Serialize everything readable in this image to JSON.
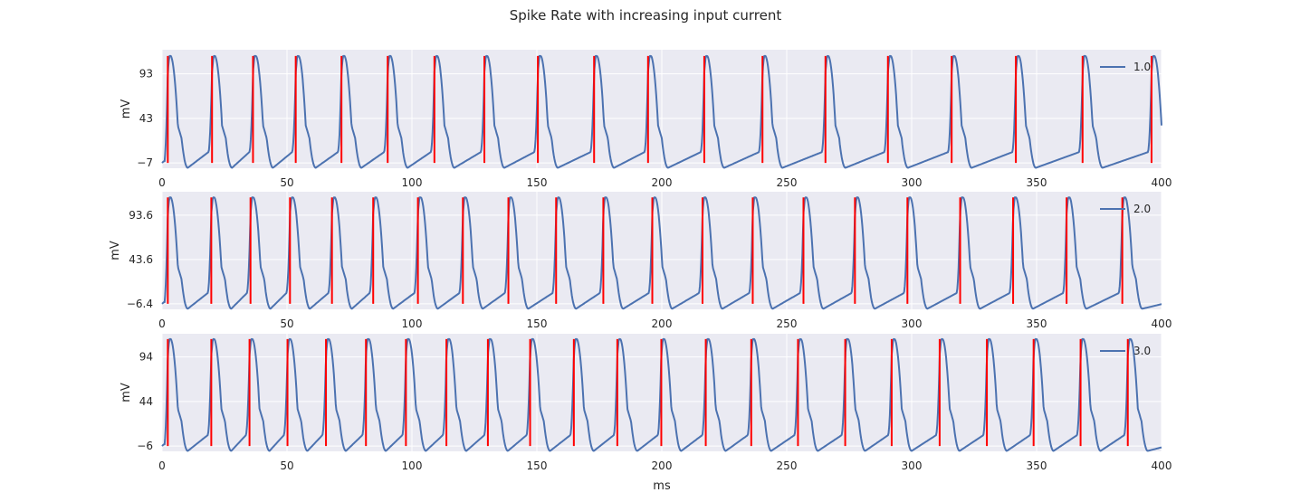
{
  "chart_data": {
    "suptitle": "Spike Rate with increasing input current",
    "xlabel": "ms",
    "colors": {
      "trace": "#4c72b0",
      "spike": "#ff0000",
      "background": "#eaeaf2",
      "grid": "#ffffff"
    },
    "panels": [
      {
        "type": "line",
        "legend": "1.0",
        "legend_position": "upper-right",
        "ylabel": "mV",
        "xlim": [
          0,
          400
        ],
        "ylim": [
          -13,
          120
        ],
        "xticks": [
          0,
          50,
          100,
          150,
          200,
          250,
          300,
          350,
          400
        ],
        "yticks": [
          -7,
          43,
          93
        ],
        "ytick_labels": [
          "−7",
          "43",
          "93"
        ],
        "v_rest": -7,
        "v_peak": 113,
        "spike_times": [
          2.3,
          20,
          36.4,
          53.5,
          71.8,
          90.3,
          109,
          129,
          150.4,
          172.9,
          194.5,
          217,
          240.3,
          265.5,
          290.5,
          316,
          341.7,
          368.4,
          396
        ]
      },
      {
        "type": "line",
        "legend": "2.0",
        "legend_position": "upper-right",
        "ylabel": "mV",
        "xlim": [
          0,
          400
        ],
        "ylim": [
          -12.6,
          120
        ],
        "xticks": [
          0,
          50,
          100,
          150,
          200,
          250,
          300,
          350,
          400
        ],
        "yticks": [
          -6.4,
          43.6,
          93.6
        ],
        "ytick_labels": [
          "−6.4",
          "43.6",
          "93.6"
        ],
        "v_rest": -6.4,
        "v_peak": 113.6,
        "spike_times": [
          2.3,
          19.7,
          35.4,
          51.2,
          68,
          84.5,
          102.4,
          120.4,
          138.6,
          157.7,
          176.6,
          196.2,
          216.3,
          236.4,
          256.7,
          277.3,
          298.3,
          319.4,
          340.6,
          362,
          384.3
        ]
      },
      {
        "type": "line",
        "legend": "3.0",
        "legend_position": "upper-right",
        "ylabel": "mV",
        "xlim": [
          0,
          400
        ],
        "ylim": [
          -12,
          120
        ],
        "xticks": [
          0,
          50,
          100,
          150,
          200,
          250,
          300,
          350,
          400
        ],
        "yticks": [
          -6,
          44,
          94
        ],
        "ytick_labels": [
          "−6",
          "44",
          "94"
        ],
        "v_rest": -6,
        "v_peak": 114,
        "spike_times": [
          2.3,
          19.7,
          35,
          50.2,
          65.6,
          81.6,
          97.6,
          113.8,
          130.4,
          147.3,
          164.8,
          182.2,
          199.8,
          217.6,
          235.8,
          254.5,
          273.4,
          292,
          311.2,
          330.1,
          348.8,
          367.6,
          386.5
        ]
      }
    ]
  }
}
